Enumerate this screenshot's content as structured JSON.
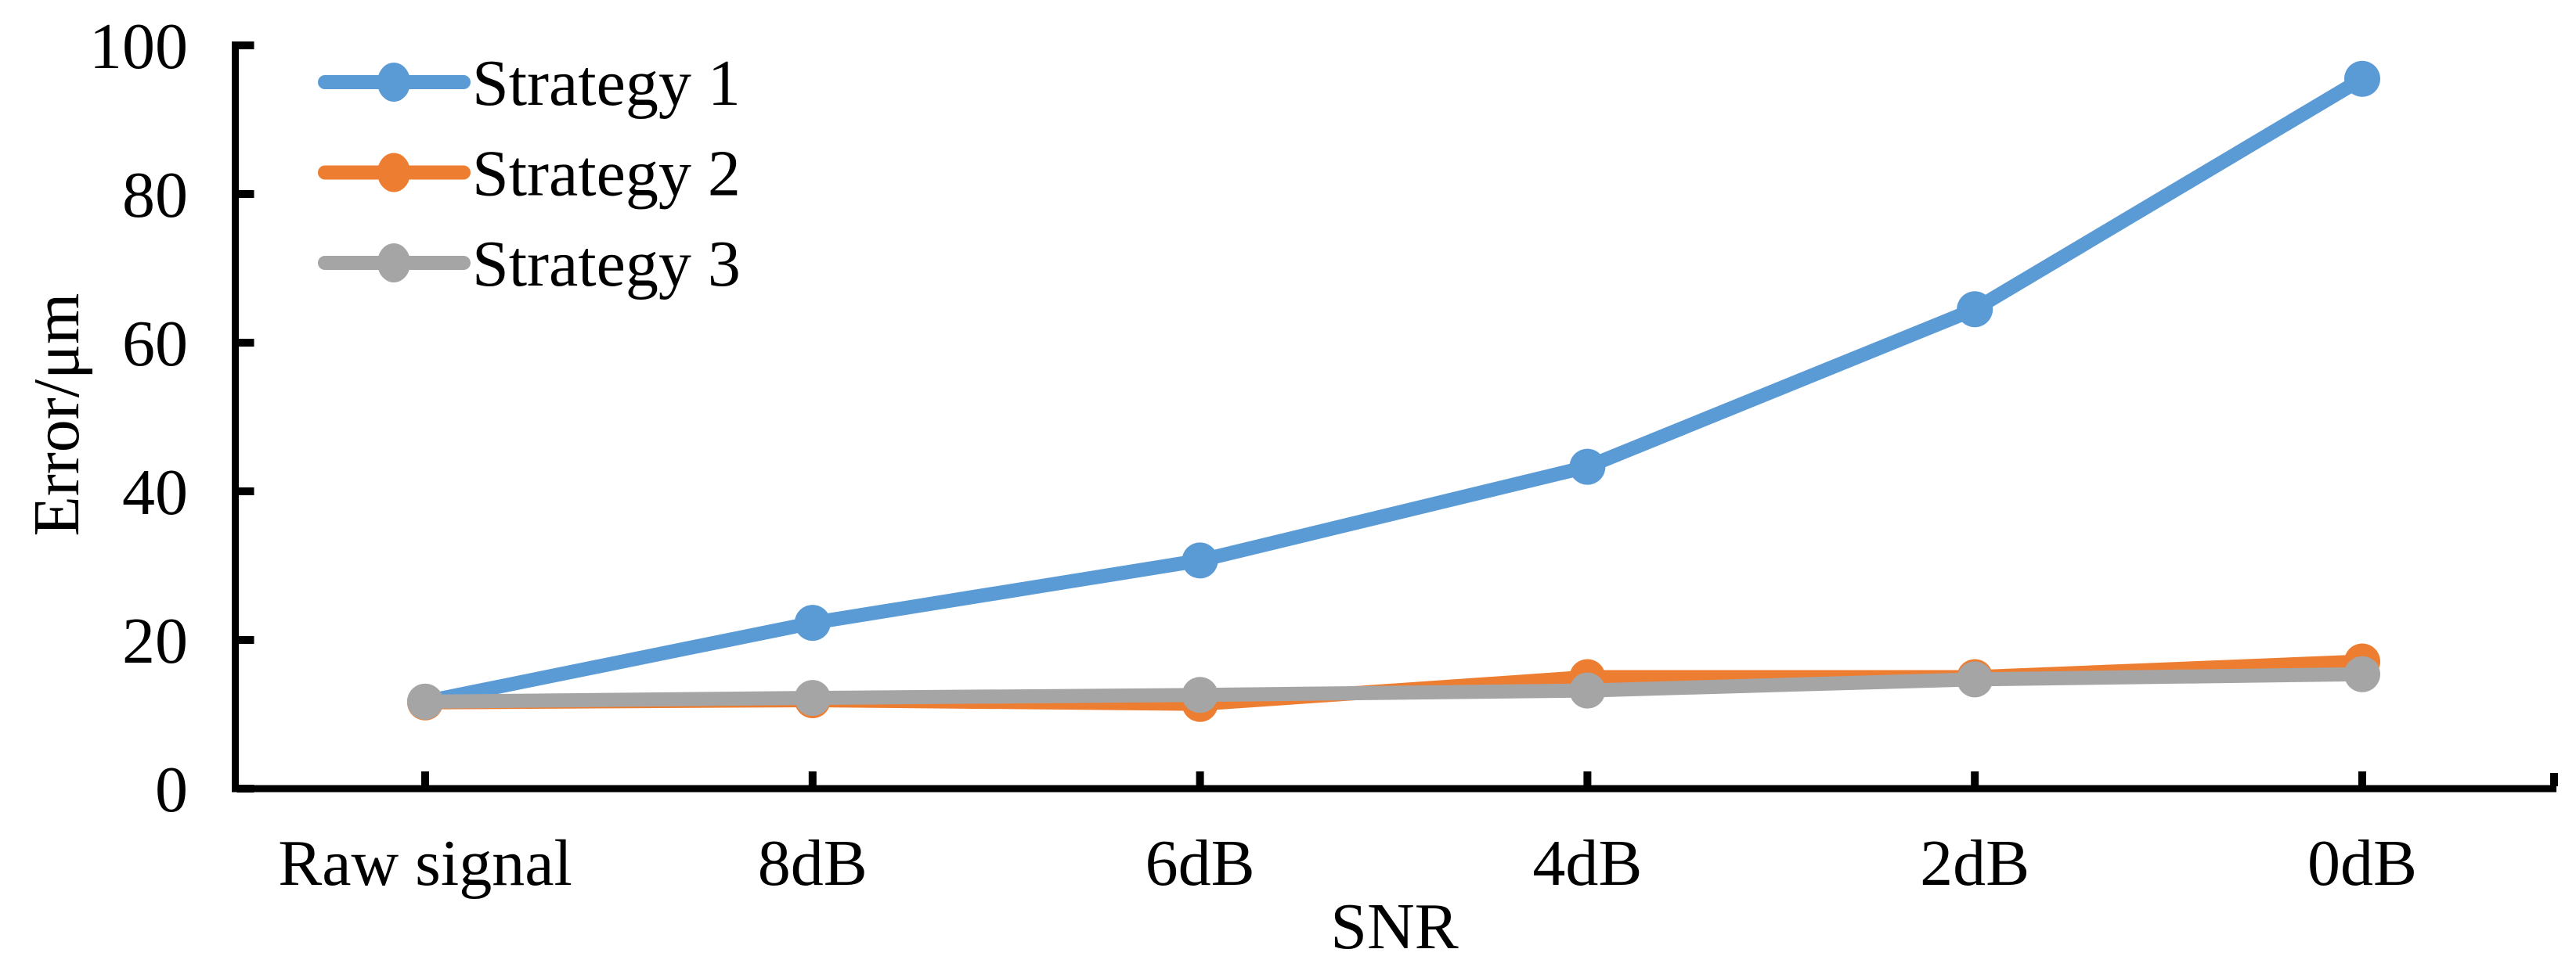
{
  "chart_data": {
    "type": "line",
    "title": "",
    "xlabel": "SNR",
    "ylabel": "Error/μm",
    "categories": [
      "Raw signal",
      "8dB",
      "6dB",
      "4dB",
      "2dB",
      "0dB"
    ],
    "series": [
      {
        "name": "Strategy 1",
        "color": "#5B9BD5",
        "values": [
          11.7,
          22.3,
          30.7,
          43.3,
          64.5,
          95.5
        ]
      },
      {
        "name": "Strategy 2",
        "color": "#ED7D31",
        "values": [
          11.6,
          11.9,
          11.4,
          15.0,
          15.0,
          17.1
        ]
      },
      {
        "name": "Strategy 3",
        "color": "#A5A5A5",
        "values": [
          11.7,
          12.2,
          12.6,
          13.2,
          14.7,
          15.4
        ]
      }
    ],
    "ylim": [
      0,
      100
    ],
    "yticks": [
      0,
      20,
      40,
      60,
      80,
      100
    ],
    "grid": false,
    "marker": "circle",
    "legend_position": "top-left",
    "axis_color": "#000000",
    "background_color": "#ffffff"
  }
}
